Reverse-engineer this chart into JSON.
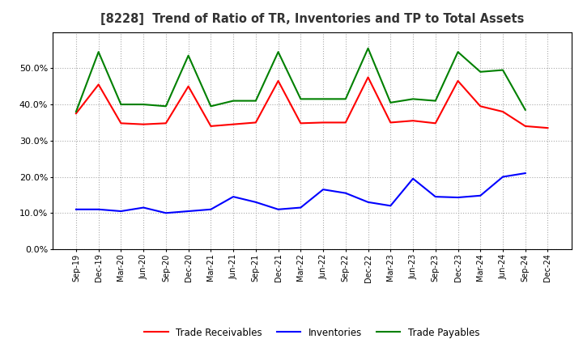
{
  "title": "[8228]  Trend of Ratio of TR, Inventories and TP to Total Assets",
  "x_labels": [
    "Sep-19",
    "Dec-19",
    "Mar-20",
    "Jun-20",
    "Sep-20",
    "Dec-20",
    "Mar-21",
    "Jun-21",
    "Sep-21",
    "Dec-21",
    "Mar-22",
    "Jun-22",
    "Sep-22",
    "Dec-22",
    "Mar-23",
    "Jun-23",
    "Sep-23",
    "Dec-23",
    "Mar-24",
    "Jun-24",
    "Sep-24",
    "Dec-24"
  ],
  "trade_receivables": [
    0.375,
    0.455,
    0.348,
    0.345,
    0.348,
    0.45,
    0.34,
    0.345,
    0.35,
    0.465,
    0.348,
    0.35,
    0.35,
    0.475,
    0.35,
    0.355,
    0.348,
    0.465,
    0.395,
    0.38,
    0.34,
    0.335
  ],
  "inventories": [
    0.11,
    0.11,
    0.105,
    0.115,
    0.1,
    0.105,
    0.11,
    0.145,
    0.13,
    0.11,
    0.115,
    0.165,
    0.155,
    0.13,
    0.12,
    0.195,
    0.145,
    0.143,
    0.148,
    0.2,
    0.21,
    null
  ],
  "trade_payables": [
    0.38,
    0.545,
    0.4,
    0.4,
    0.395,
    0.535,
    0.395,
    0.41,
    0.41,
    0.545,
    0.415,
    0.415,
    0.415,
    0.555,
    0.405,
    0.415,
    0.41,
    0.545,
    0.49,
    0.495,
    0.385,
    null
  ],
  "tr_color": "#ff0000",
  "inv_color": "#0000ff",
  "tp_color": "#008000",
  "ylim": [
    0.0,
    0.6
  ],
  "yticks": [
    0.0,
    0.1,
    0.2,
    0.3,
    0.4,
    0.5
  ],
  "background_color": "#ffffff",
  "grid_color": "#aaaaaa"
}
